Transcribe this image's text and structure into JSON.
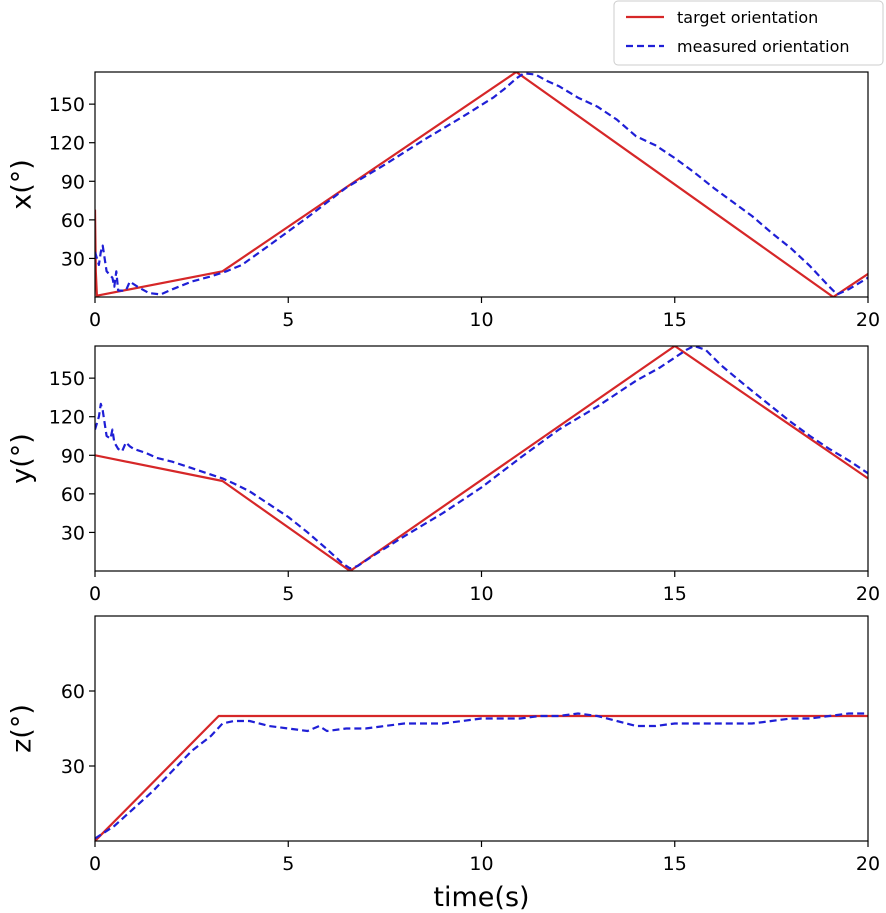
{
  "chart_data": [
    {
      "type": "line",
      "ylabel": "x(°)",
      "xlabel": "",
      "xlim": [
        0,
        20
      ],
      "ylim": [
        0,
        175
      ],
      "xticks": [
        "0",
        "5",
        "10",
        "15",
        "20"
      ],
      "yticks": [
        "30",
        "60",
        "90",
        "120",
        "150"
      ],
      "series": [
        {
          "name": "target orientation",
          "color": "#d62728",
          "style": "solid",
          "x": [
            0,
            0.02,
            0.05,
            3.3,
            10.9,
            19.1,
            20
          ],
          "y": [
            68,
            20,
            1,
            20,
            175,
            0,
            18
          ]
        },
        {
          "name": "measured orientation",
          "color": "#1f1fd6",
          "style": "dashed",
          "x": [
            0,
            0.1,
            0.15,
            0.2,
            0.3,
            0.45,
            0.5,
            0.55,
            0.6,
            0.8,
            0.9,
            1.1,
            1.4,
            1.7,
            2.0,
            2.5,
            3.0,
            3.4,
            3.8,
            4.5,
            5.5,
            6.5,
            7.5,
            8.5,
            9.5,
            10.3,
            10.6,
            10.9,
            11.1,
            11.4,
            11.7,
            12.0,
            12.5,
            13.0,
            13.5,
            14.0,
            14.5,
            15.0,
            15.5,
            16.0,
            16.5,
            17.0,
            17.5,
            18.0,
            18.5,
            19.0,
            19.2,
            19.5,
            20
          ],
          "y": [
            35,
            25,
            35,
            40,
            20,
            15,
            8,
            20,
            5,
            5,
            12,
            8,
            3,
            2,
            6,
            12,
            16,
            20,
            25,
            40,
            62,
            85,
            103,
            122,
            140,
            155,
            162,
            170,
            174,
            173,
            168,
            164,
            155,
            148,
            138,
            125,
            118,
            108,
            97,
            85,
            74,
            63,
            50,
            38,
            24,
            8,
            2,
            6,
            15
          ]
        }
      ]
    },
    {
      "type": "line",
      "ylabel": "y(°)",
      "xlabel": "",
      "xlim": [
        0,
        20
      ],
      "ylim": [
        0,
        175
      ],
      "xticks": [
        "0",
        "5",
        "10",
        "15",
        "20"
      ],
      "yticks": [
        "30",
        "60",
        "90",
        "120",
        "150"
      ],
      "series": [
        {
          "name": "target orientation",
          "color": "#d62728",
          "style": "solid",
          "x": [
            0,
            3.3,
            6.6,
            15.0,
            20
          ],
          "y": [
            90,
            70,
            0,
            175,
            72
          ]
        },
        {
          "name": "measured orientation",
          "color": "#1f1fd6",
          "style": "dashed",
          "x": [
            0,
            0.1,
            0.15,
            0.2,
            0.3,
            0.4,
            0.45,
            0.5,
            0.6,
            0.7,
            0.8,
            0.9,
            1.0,
            1.3,
            1.6,
            2.0,
            2.5,
            3.0,
            3.3,
            3.6,
            4.0,
            4.5,
            5.0,
            5.5,
            6.0,
            6.4,
            6.6,
            6.8,
            7.2,
            8.0,
            9.0,
            10.0,
            11.0,
            12.0,
            13.0,
            14.0,
            14.6,
            15.0,
            15.3,
            15.5,
            15.8,
            16.2,
            16.8,
            17.5,
            18.0,
            18.5,
            19.0,
            19.5,
            20
          ],
          "y": [
            110,
            120,
            130,
            125,
            105,
            103,
            110,
            100,
            95,
            93,
            100,
            97,
            95,
            92,
            88,
            85,
            80,
            75,
            72,
            68,
            62,
            52,
            42,
            30,
            17,
            6,
            2,
            4,
            12,
            27,
            45,
            65,
            88,
            110,
            128,
            148,
            158,
            166,
            172,
            175,
            172,
            160,
            145,
            128,
            116,
            105,
            95,
            86,
            76
          ]
        }
      ]
    },
    {
      "type": "line",
      "ylabel": "z(°)",
      "xlabel": "time(s)",
      "xlim": [
        0,
        20
      ],
      "ylim": [
        0,
        90
      ],
      "xticks": [
        "0",
        "5",
        "10",
        "15",
        "20"
      ],
      "yticks": [
        "30",
        "60"
      ],
      "series": [
        {
          "name": "target orientation",
          "color": "#d62728",
          "style": "solid",
          "x": [
            0,
            3.2,
            20
          ],
          "y": [
            0,
            50,
            50
          ]
        },
        {
          "name": "measured orientation",
          "color": "#1f1fd6",
          "style": "dashed",
          "x": [
            0,
            0.5,
            1.0,
            1.5,
            2.0,
            2.5,
            3.0,
            3.3,
            3.6,
            4.0,
            4.5,
            5.0,
            5.5,
            5.8,
            6.0,
            6.5,
            7.0,
            7.5,
            8.0,
            8.5,
            9.0,
            9.5,
            10.0,
            10.5,
            11.0,
            11.5,
            12.0,
            12.5,
            13.0,
            13.5,
            14.0,
            14.5,
            15.0,
            15.5,
            16.0,
            16.5,
            17.0,
            17.5,
            18.0,
            18.5,
            19.0,
            19.5,
            20
          ],
          "y": [
            1,
            6,
            13,
            20,
            28,
            36,
            42,
            47,
            48,
            48,
            46,
            45,
            44,
            46,
            44,
            45,
            45,
            46,
            47,
            47,
            47,
            48,
            49,
            49,
            49,
            50,
            50,
            51,
            50,
            48,
            46,
            46,
            47,
            47,
            47,
            47,
            47,
            48,
            49,
            49,
            50,
            51,
            51
          ]
        }
      ]
    }
  ],
  "legend": {
    "entries": [
      "target orientation",
      "measured orientation"
    ],
    "placement": "top-right"
  }
}
